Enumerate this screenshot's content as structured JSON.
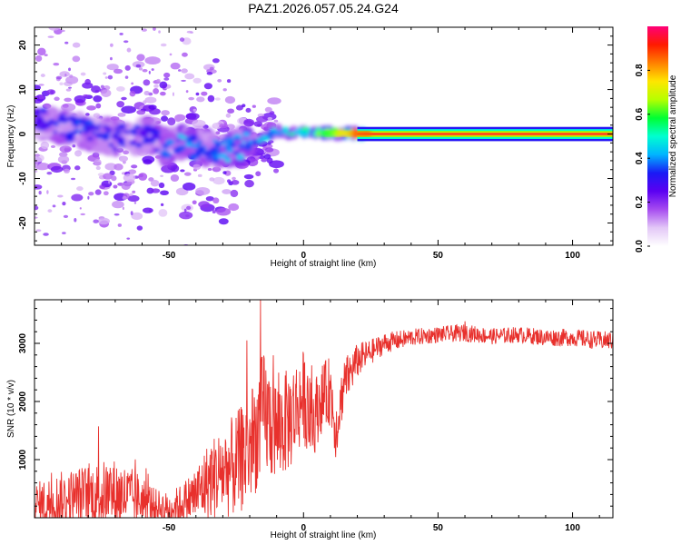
{
  "chart_data": [
    {
      "type": "heatmap",
      "title": "PAZ1.2026.057.05.24.G24",
      "xlabel": "Height of straight line (km)",
      "ylabel": "Frequency (Hz)",
      "xlim": [
        -100,
        115
      ],
      "ylim": [
        -25,
        24
      ],
      "xticks": [
        -50,
        0,
        50,
        100
      ],
      "xtick_labels": [
        "-50",
        "0",
        "50",
        "100"
      ],
      "yticks": [
        20,
        10,
        0,
        -10,
        -20
      ],
      "ytick_labels": [
        "20",
        "10",
        "0",
        "-10",
        "-20"
      ],
      "colorbar": {
        "label": "Normalized spectral amplitude",
        "range": [
          0,
          1
        ],
        "ticks": [
          0.0,
          0.2,
          0.4,
          0.6,
          0.8
        ],
        "tick_labels": [
          "0.0",
          "0.2",
          "0.4",
          "0.6",
          "0.8"
        ],
        "colors": [
          "#ffffff",
          "#e3c8f7",
          "#a64cf0",
          "#5b00f2",
          "#1a1af5",
          "#00b5ff",
          "#00ffd0",
          "#00ff33",
          "#b6ff00",
          "#ffe600",
          "#ff8000",
          "#ff1a00",
          "#ff0078"
        ]
      },
      "description_points": [
        {
          "h": -95,
          "f": 3,
          "amp": 0.3
        },
        {
          "h": -85,
          "f": 1,
          "amp": 0.35
        },
        {
          "h": -70,
          "f": -1,
          "amp": 0.3
        },
        {
          "h": -60,
          "f": 0,
          "amp": 0.3
        },
        {
          "h": -50,
          "f": -3,
          "amp": 0.35
        },
        {
          "h": -45,
          "f": -2,
          "amp": 0.4
        },
        {
          "h": -40,
          "f": -3,
          "amp": 0.35
        },
        {
          "h": -30,
          "f": -4,
          "amp": 0.4
        },
        {
          "h": -20,
          "f": -2,
          "amp": 0.4
        },
        {
          "h": -10,
          "f": 0.5,
          "amp": 0.45
        },
        {
          "h": 0,
          "f": 0.5,
          "amp": 0.5
        },
        {
          "h": 10,
          "f": 0.3,
          "amp": 0.6
        },
        {
          "h": 20,
          "f": 0.1,
          "amp": 0.85
        },
        {
          "h": 50,
          "f": 0,
          "amp": 0.95
        },
        {
          "h": 100,
          "f": 0,
          "amp": 0.95
        }
      ]
    },
    {
      "type": "line",
      "xlabel": "Height of straight line (km)",
      "ylabel": "SNR (10 * v/v)",
      "xlim": [
        -100,
        115
      ],
      "ylim": [
        0,
        3750
      ],
      "xticks": [
        -50,
        0,
        50,
        100
      ],
      "xtick_labels": [
        "-50",
        "0",
        "50",
        "100"
      ],
      "yticks": [
        1000,
        2000,
        3000
      ],
      "ytick_labels": [
        "1000",
        "2000",
        "3000"
      ],
      "color": "#e8302c",
      "series": [
        {
          "name": "SNR",
          "x": [
            -100,
            -90,
            -80,
            -70,
            -60,
            -55,
            -50,
            -45,
            -40,
            -35,
            -30,
            -25,
            -20,
            -17,
            -15,
            -10,
            -5,
            0,
            3,
            6,
            10,
            12,
            15,
            20,
            25,
            30,
            40,
            50,
            60,
            70,
            80,
            90,
            100,
            110,
            115
          ],
          "y": [
            200,
            300,
            380,
            420,
            300,
            200,
            150,
            250,
            400,
            650,
            800,
            900,
            1200,
            1500,
            1800,
            1500,
            1700,
            2100,
            1600,
            2000,
            2200,
            1500,
            2300,
            2700,
            2850,
            3000,
            3100,
            3150,
            3180,
            3120,
            3150,
            3100,
            3100,
            3050,
            3050
          ],
          "noise_amplitude": [
            400,
            500,
            550,
            600,
            450,
            300,
            280,
            350,
            500,
            700,
            800,
            900,
            1000,
            1000,
            1100,
            900,
            900,
            800,
            700,
            600,
            600,
            500,
            450,
            300,
            220,
            180,
            150,
            140,
            150,
            140,
            140,
            150,
            150,
            160,
            160
          ],
          "spikes": [
            {
              "x": -16,
              "y": 3750
            },
            {
              "x": -21,
              "y": 3050
            },
            {
              "x": 3,
              "y": 2620
            },
            {
              "x": 60,
              "y": 3380
            }
          ]
        }
      ]
    }
  ]
}
